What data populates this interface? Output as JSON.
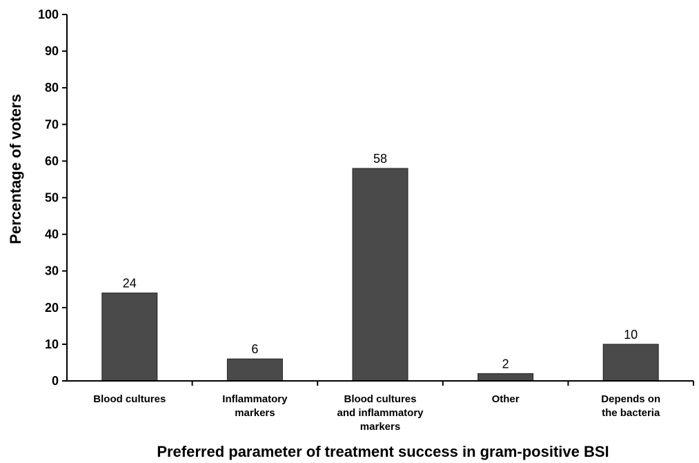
{
  "chart_data": {
    "type": "bar",
    "categories": [
      [
        "Blood cultures"
      ],
      [
        "Inflammatory",
        "markers"
      ],
      [
        "Blood cultures",
        "and inflammatory",
        "markers"
      ],
      [
        "Other"
      ],
      [
        "Depends on",
        "the bacteria"
      ]
    ],
    "values": [
      24,
      6,
      58,
      2,
      10
    ],
    "data_labels": [
      "24",
      "6",
      "58",
      "2",
      "10"
    ],
    "title": "",
    "xlabel": "Preferred parameter of treatment success in gram-positive BSI",
    "ylabel": "Percentage of voters",
    "ylim": [
      0,
      100
    ],
    "yticks": [
      0,
      10,
      20,
      30,
      40,
      50,
      60,
      70,
      80,
      90,
      100
    ],
    "grid": false,
    "legend": "none",
    "bar_color": "#4a4a4a",
    "axis_color": "#000000"
  }
}
